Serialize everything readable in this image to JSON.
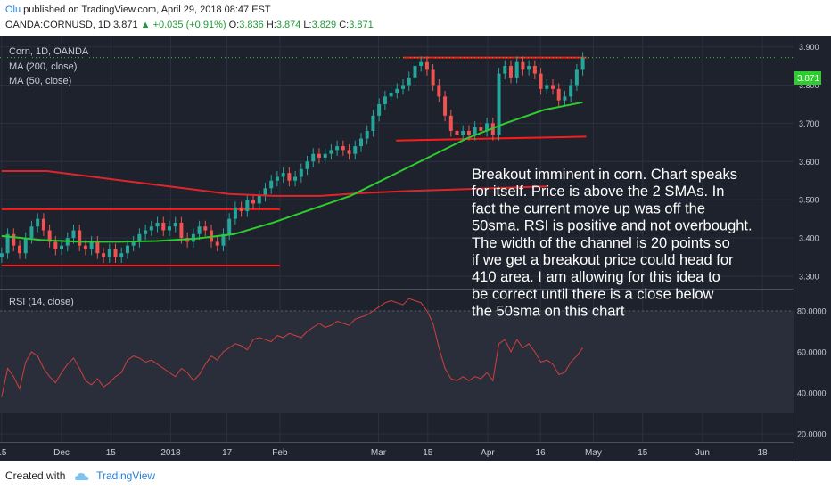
{
  "header": {
    "user": "Olu",
    "published_text": " published on TradingView.com, April 29, 2018 08:47 EST",
    "symbol": "OANDA:CORNUSD, 1D",
    "last": "3.871",
    "change": "+0.035 (+0.91%)",
    "ohlc_labels": [
      "O:",
      "H:",
      "L:",
      "C:"
    ],
    "ohlc_values": [
      "3.836",
      "3.874",
      "3.829",
      "3.871"
    ]
  },
  "footer": {
    "created_with": "Created with",
    "brand": "TradingView"
  },
  "chart_data": {
    "type": "candlestick",
    "title": "Corn, 1D, OANDA",
    "indicators": [
      "MA (200, close)",
      "MA (50, close)"
    ],
    "rsi_title": "RSI (14, close)",
    "last_price": "3.871",
    "price_ticks": [
      "3.900",
      "3.800",
      "3.700",
      "3.600",
      "3.500",
      "3.400",
      "3.300"
    ],
    "rsi_ticks": [
      "80.0000",
      "60.0000",
      "40.0000",
      "20.0000"
    ],
    "ylim_price": [
      3.272,
      3.92
    ],
    "ylim_rsi": [
      17,
      90
    ],
    "x_ticks": [
      {
        "label": "15",
        "day": -17
      },
      {
        "label": "Dec",
        "day": 0
      },
      {
        "label": "15",
        "day": 14
      },
      {
        "label": "2018",
        "day": 31
      },
      {
        "label": "17",
        "day": 47
      },
      {
        "label": "Feb",
        "day": 62
      },
      {
        "label": "Mar",
        "day": 90
      },
      {
        "label": "15",
        "day": 104
      },
      {
        "label": "Apr",
        "day": 121
      },
      {
        "label": "16",
        "day": 136
      },
      {
        "label": "May",
        "day": 151
      },
      {
        "label": "15",
        "day": 165
      },
      {
        "label": "Jun",
        "day": 182
      },
      {
        "label": "18",
        "day": 199
      }
    ],
    "closes": [
      3.36,
      3.41,
      3.38,
      3.36,
      3.4,
      3.43,
      3.45,
      3.42,
      3.39,
      3.37,
      3.38,
      3.4,
      3.42,
      3.38,
      3.37,
      3.39,
      3.36,
      3.35,
      3.37,
      3.35,
      3.36,
      3.38,
      3.39,
      3.41,
      3.42,
      3.43,
      3.44,
      3.42,
      3.43,
      3.44,
      3.4,
      3.39,
      3.41,
      3.43,
      3.42,
      3.39,
      3.38,
      3.41,
      3.45,
      3.48,
      3.47,
      3.5,
      3.49,
      3.51,
      3.53,
      3.55,
      3.56,
      3.57,
      3.55,
      3.56,
      3.58,
      3.6,
      3.62,
      3.61,
      3.62,
      3.63,
      3.64,
      3.63,
      3.62,
      3.64,
      3.66,
      3.68,
      3.72,
      3.75,
      3.77,
      3.78,
      3.79,
      3.8,
      3.82,
      3.85,
      3.86,
      3.84,
      3.8,
      3.77,
      3.72,
      3.68,
      3.67,
      3.68,
      3.67,
      3.69,
      3.68,
      3.7,
      3.67,
      3.83,
      3.85,
      3.82,
      3.86,
      3.84,
      3.85,
      3.83,
      3.79,
      3.8,
      3.79,
      3.76,
      3.77,
      3.8,
      3.84,
      3.871
    ],
    "ma200": [
      3.575,
      3.575,
      3.56,
      3.545,
      3.53,
      3.515,
      3.51,
      3.51,
      3.518,
      3.523,
      3.527,
      3.531,
      3.535
    ],
    "ma50": [
      3.405,
      3.395,
      3.39,
      3.39,
      3.392,
      3.398,
      3.41,
      3.44,
      3.475,
      3.51,
      3.56,
      3.61,
      3.66,
      3.7,
      3.735,
      3.755
    ],
    "rsi": [
      38,
      52,
      48,
      42,
      55,
      60,
      58,
      52,
      48,
      45,
      50,
      54,
      57,
      52,
      46,
      44,
      47,
      43,
      45,
      48,
      50,
      56,
      58,
      57,
      55,
      56,
      54,
      52,
      50,
      48,
      52,
      50,
      46,
      49,
      54,
      58,
      56,
      60,
      62,
      64,
      63,
      61,
      66,
      67,
      66,
      65,
      68,
      67,
      69,
      68,
      67,
      70,
      72,
      74,
      72,
      73,
      75,
      74,
      73,
      76,
      77,
      78,
      80,
      82,
      84,
      85,
      84,
      83,
      86,
      85,
      84,
      80,
      74,
      62,
      52,
      47,
      46,
      48,
      46,
      48,
      47,
      50,
      46,
      64,
      66,
      60,
      66,
      62,
      64,
      60,
      55,
      56,
      54,
      49,
      50,
      55,
      58,
      62
    ],
    "annotation": "Breakout imminent in corn. Chart speaks for itself. Price is above the 2 SMAs. In fact the current move up was off the 50sma. RSI is positive and not overbought. The width of the channel is 20 points so if we get a breakout price could head for 410 area. I am allowing for this idea to be correct until there is a close below the 50sma on this chart",
    "colors": {
      "up": "#26a69a",
      "down": "#ef5350",
      "ma200": "#e0242a",
      "ma50": "#2ecc2e",
      "rsi": "#d0403a",
      "levels": "#ff1a1a",
      "bg": "#1e222d"
    }
  }
}
